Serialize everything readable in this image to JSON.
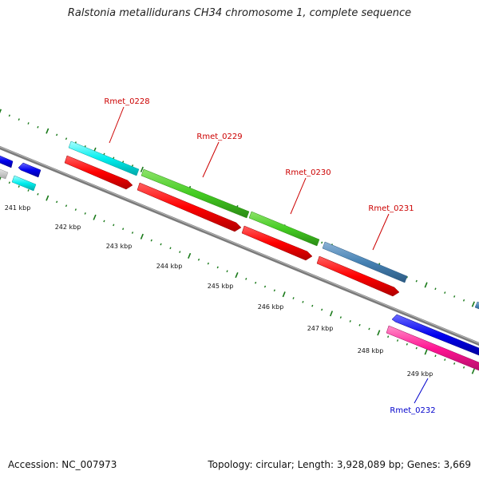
{
  "title": "Ralstonia metallidurans CH34 chromosome 1, complete sequence",
  "footer": {
    "accession": "Accession: NC_007973",
    "summary": "Topology: circular; Length: 3,928,089 bp; Genes: 3,669"
  },
  "colors": {
    "backbone": "#808080",
    "tick": "#1a7a1a",
    "red": "#ff0000",
    "green": "#44cc22",
    "cyan": "#00eeee",
    "steelblue": "#4682b4",
    "blue": "#0000ee",
    "magenta": "#ff1493",
    "gray": "#c8c8c8",
    "label_red": "#cc0000",
    "label_blue": "#0000cc"
  },
  "scale_labels": [
    "241 kbp",
    "242 kbp",
    "243 kbp",
    "244 kbp",
    "245 kbp",
    "246 kbp",
    "247 kbp",
    "248 kbp",
    "249 kbp"
  ],
  "gene_labels": [
    {
      "text": "Rmet_0228",
      "color": "label_red"
    },
    {
      "text": "Rmet_0229",
      "color": "label_red"
    },
    {
      "text": "Rmet_0230",
      "color": "label_red"
    },
    {
      "text": "Rmet_0231",
      "color": "label_red"
    },
    {
      "text": "Rmet_0232",
      "color": "label_blue"
    }
  ]
}
